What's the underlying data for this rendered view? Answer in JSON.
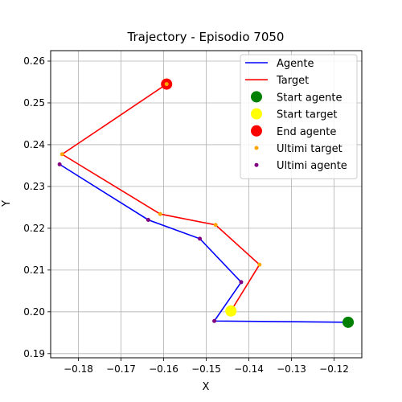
{
  "chart_data": {
    "type": "line",
    "title": "Trajectory - Episodio 7050",
    "xlabel": "X",
    "ylabel": "Y",
    "xlim": [
      -0.1865,
      -0.1135
    ],
    "ylim": [
      0.189,
      0.2625
    ],
    "xticks": [
      -0.18,
      -0.17,
      -0.16,
      -0.15,
      -0.14,
      -0.13,
      -0.12
    ],
    "yticks": [
      0.19,
      0.2,
      0.21,
      0.22,
      0.23,
      0.24,
      0.25,
      0.26
    ],
    "grid": true,
    "legend_position": "top-right",
    "series": [
      {
        "name": "Agente",
        "kind": "line",
        "color": "#0000ff",
        "x": [
          -0.1167,
          -0.1481,
          -0.1418,
          -0.1515,
          -0.1636,
          -0.1844
        ],
        "y": [
          0.1975,
          0.1978,
          0.2071,
          0.2175,
          0.222,
          0.2353
        ]
      },
      {
        "name": "Target",
        "kind": "line",
        "color": "#ff0000",
        "x": [
          -0.1442,
          -0.1375,
          -0.1478,
          -0.1608,
          -0.1838,
          -0.1593
        ],
        "y": [
          0.2002,
          0.2113,
          0.2208,
          0.2234,
          0.2377,
          0.2545
        ]
      },
      {
        "name": "Start agente",
        "kind": "marker",
        "color": "#008000",
        "size": "large",
        "x": [
          -0.1167
        ],
        "y": [
          0.1975
        ]
      },
      {
        "name": "Start target",
        "kind": "marker",
        "color": "#ffff00",
        "size": "large",
        "x": [
          -0.1442
        ],
        "y": [
          0.2002
        ]
      },
      {
        "name": "End agente",
        "kind": "marker",
        "color": "#ff0000",
        "size": "large",
        "x": [
          -0.1593
        ],
        "y": [
          0.2545
        ]
      },
      {
        "name": "Ultimi target",
        "kind": "marker",
        "color": "#ffa500",
        "size": "small",
        "x": [
          -0.1375,
          -0.1478,
          -0.1608,
          -0.1838,
          -0.1593
        ],
        "y": [
          0.2113,
          0.2208,
          0.2234,
          0.2377,
          0.2545
        ]
      },
      {
        "name": "Ultimi agente",
        "kind": "marker",
        "color": "#800080",
        "size": "small",
        "x": [
          -0.1481,
          -0.1418,
          -0.1515,
          -0.1636,
          -0.1844
        ],
        "y": [
          0.1978,
          0.2071,
          0.2175,
          0.222,
          0.2353
        ]
      }
    ]
  }
}
